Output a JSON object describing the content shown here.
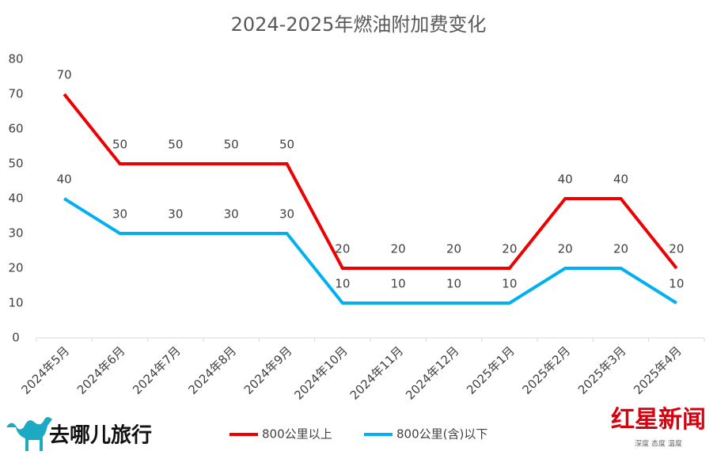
{
  "chart_data": {
    "type": "line",
    "title": "2024-2025年燃油附加费变化",
    "categories": [
      "2024年5月",
      "2024年6月",
      "2024年7月",
      "2024年8月",
      "2024年9月",
      "2024年10月",
      "2024年11月",
      "2024年12月",
      "2025年1月",
      "2025年2月",
      "2025年3月",
      "2025年4月"
    ],
    "series": [
      {
        "name": "800公里以上",
        "color": "#ee0000",
        "values": [
          70,
          50,
          50,
          50,
          50,
          20,
          20,
          20,
          20,
          40,
          40,
          20
        ]
      },
      {
        "name": "800公里(含)以下",
        "color": "#00b0f0",
        "values": [
          40,
          30,
          30,
          30,
          30,
          10,
          10,
          10,
          10,
          20,
          20,
          10
        ]
      }
    ],
    "ylim": [
      0,
      80
    ],
    "yticks": [
      0,
      10,
      20,
      30,
      40,
      50,
      60,
      70,
      80
    ],
    "grid": false,
    "legend": "bottom",
    "annotations": [
      "去哪儿旅行",
      "红星新闻",
      "深度 态度 温度"
    ]
  }
}
